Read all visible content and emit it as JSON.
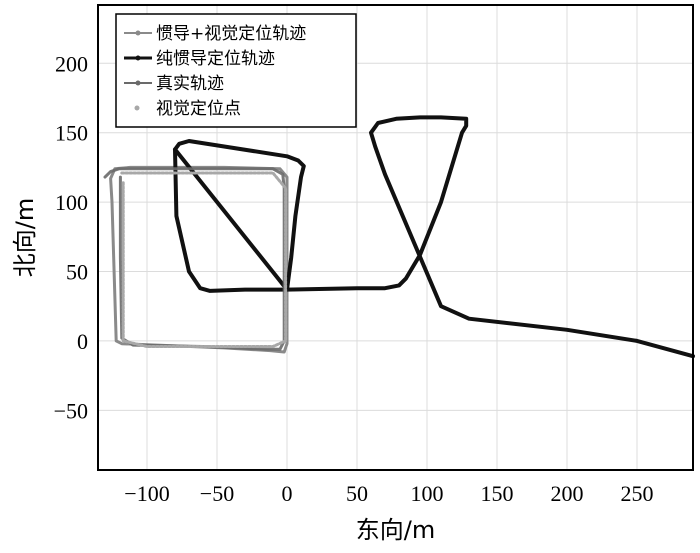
{
  "chart_data": {
    "type": "line",
    "title": "",
    "xlabel": "东向/m",
    "ylabel": "北向/m",
    "xlim": [
      -135,
      290
    ],
    "ylim": [
      -93,
      242
    ],
    "xticks": [
      -100,
      -50,
      0,
      50,
      100,
      150,
      200,
      250
    ],
    "yticks": [
      -50,
      0,
      50,
      100,
      150,
      200
    ],
    "grid": true,
    "legend_position": "top-left",
    "series": [
      {
        "name": "惯导+视觉定位轨迹",
        "color": "#8a8a8a",
        "x": [
          -125,
          -126,
          -123,
          -112,
          -45,
          -5,
          0,
          0,
          -2,
          -12,
          -45,
          -118,
          -122,
          -125
        ],
        "y": [
          100,
          117,
          124,
          125,
          125,
          124,
          118,
          -2,
          -8,
          -7,
          -5,
          -2,
          0,
          100
        ]
      },
      {
        "name": "纯惯导定位轨迹",
        "color": "#111111",
        "x": [
          -80,
          -77,
          -70,
          0,
          8,
          12,
          10,
          6,
          3,
          0,
          -30,
          -55,
          -62,
          -70,
          -79,
          -80,
          0,
          50,
          70,
          80,
          85,
          95,
          110,
          125,
          128,
          128,
          110,
          95,
          78,
          65,
          60,
          63,
          70,
          110,
          130,
          200,
          250,
          290
        ],
        "y": [
          138,
          142,
          144,
          133,
          130,
          126,
          118,
          90,
          60,
          37,
          37,
          36,
          38,
          50,
          90,
          138,
          37,
          38,
          38,
          40,
          45,
          62,
          100,
          150,
          155,
          160,
          161,
          161,
          160,
          157,
          150,
          140,
          120,
          25,
          16,
          8,
          0,
          -11
        ]
      },
      {
        "name": "真实轨迹",
        "color": "#6a6a6a",
        "x": [
          -130,
          -126,
          -120,
          -60,
          -10,
          -3,
          -2,
          -2,
          -5,
          -15,
          -60,
          -110,
          -118,
          -119,
          -119
        ],
        "y": [
          118,
          122,
          124,
          124,
          124,
          120,
          110,
          0,
          -6,
          -6,
          -4,
          -3,
          2,
          60,
          118
        ]
      },
      {
        "name": "视觉定位点",
        "color": "#a8a8a8",
        "x": [
          -118,
          -100,
          -70,
          -40,
          -10,
          -1,
          -1,
          -1,
          -1,
          -1,
          -10,
          -40,
          -70,
          -100,
          -117,
          -117,
          -117,
          -117,
          -117
        ],
        "y": [
          121,
          121,
          121,
          121,
          121,
          110,
          80,
          50,
          20,
          0,
          -4,
          -4,
          -4,
          -4,
          0,
          30,
          60,
          90,
          115
        ]
      }
    ]
  }
}
